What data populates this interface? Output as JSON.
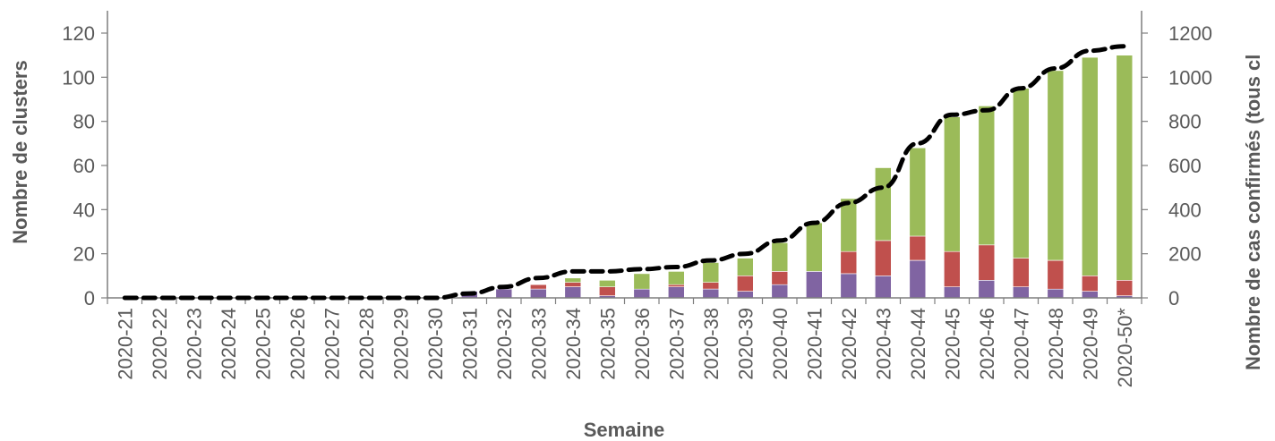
{
  "chart_data": {
    "type": "bar",
    "stacked": true,
    "xlabel": "Semaine",
    "ylabel_left": "Nombre de clusters",
    "ylabel_right": "Nombre de cas confirmés (tous cl",
    "ylim_left": [
      0,
      120
    ],
    "ylim_right": [
      0,
      1200
    ],
    "yticks_left": [
      0,
      20,
      40,
      60,
      80,
      100,
      120
    ],
    "yticks_right": [
      0,
      200,
      400,
      600,
      800,
      1000,
      1200
    ],
    "grid": false,
    "legend": "none",
    "categories": [
      "2020-21",
      "2020-22",
      "2020-23",
      "2020-24",
      "2020-25",
      "2020-26",
      "2020-27",
      "2020-28",
      "2020-29",
      "2020-30",
      "2020-31",
      "2020-32",
      "2020-33",
      "2020-34",
      "2020-35",
      "2020-36",
      "2020-37",
      "2020-38",
      "2020-39",
      "2020-40",
      "2020-41",
      "2020-42",
      "2020-43",
      "2020-44",
      "2020-45",
      "2020-46",
      "2020-47",
      "2020-48",
      "2020-49",
      "2020-50*"
    ],
    "series": [
      {
        "color": "#8064a2",
        "axis": "left",
        "values": [
          0,
          0,
          0,
          0,
          0,
          0,
          0,
          0,
          0,
          0,
          3,
          4,
          4,
          5,
          1,
          4,
          5,
          4,
          3,
          6,
          12,
          11,
          10,
          17,
          5,
          8,
          5,
          4,
          3,
          1
        ]
      },
      {
        "color": "#c0504d",
        "axis": "left",
        "values": [
          0,
          0,
          0,
          0,
          0,
          0,
          0,
          0,
          0,
          0,
          0,
          0,
          2,
          2,
          4,
          0,
          1,
          3,
          7,
          6,
          0,
          10,
          16,
          11,
          16,
          16,
          13,
          13,
          7,
          7
        ]
      },
      {
        "color": "#9bbb59",
        "axis": "left",
        "values": [
          0,
          0,
          0,
          0,
          0,
          0,
          0,
          0,
          0,
          0,
          0,
          0,
          0,
          2,
          3,
          7,
          6,
          9,
          8,
          13,
          22,
          24,
          33,
          40,
          61,
          63,
          77,
          86,
          99,
          102
        ]
      },
      {
        "color": "#000000",
        "axis": "right",
        "style": "dashed-line",
        "values": [
          0,
          0,
          0,
          0,
          0,
          0,
          0,
          0,
          0,
          0,
          20,
          50,
          90,
          120,
          120,
          130,
          140,
          170,
          200,
          260,
          340,
          430,
          500,
          700,
          830,
          850,
          950,
          1040,
          1120,
          1140
        ]
      }
    ]
  }
}
